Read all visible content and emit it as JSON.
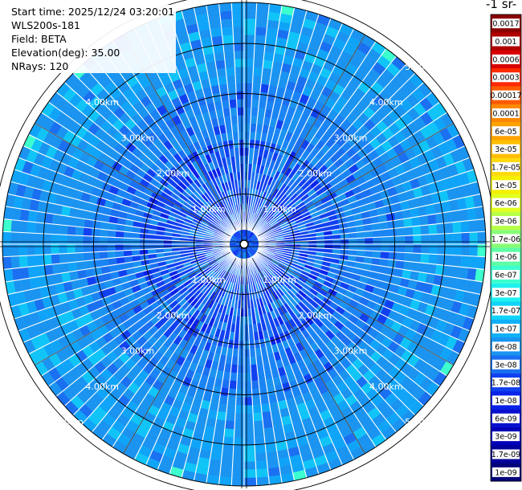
{
  "info": {
    "start_time": "Start time: 2025/12/24 03:20:01",
    "instrument": "WLS200s-181",
    "field": "Field: BETA",
    "elevation": "Elevation(deg): 35.00",
    "nrays": "NRays: 120"
  },
  "unit_label": "-1 sr-",
  "chart_data": {
    "type": "heatmap",
    "subtype": "ppi-polar-scan",
    "field": "BETA",
    "elevation_deg": 35.0,
    "n_rays": 120,
    "max_range_km": 5.8,
    "range_rings_km": [
      1,
      2,
      3,
      4,
      5
    ],
    "range_ring_labels": [
      "1.00km",
      "2.00km",
      "3.00km",
      "4.00km",
      "5.00km"
    ],
    "colorbar": {
      "labels": [
        "0.0017",
        "0.001",
        "0.0006",
        "0.0003",
        "0.00017",
        "0.0001",
        "6e-05",
        "3e-05",
        "1.7e-05",
        "1e-05",
        "6e-06",
        "3e-06",
        "1.7e-06",
        "1e-06",
        "6e-07",
        "3e-07",
        "1.7e-07",
        "1e-07",
        "6e-08",
        "3e-08",
        "1.7e-08",
        "1e-08",
        "6e-09",
        "3e-09",
        "1.7e-09",
        "1e-09"
      ],
      "colors": [
        "#8b0000",
        "#b00000",
        "#d80000",
        "#ff2a00",
        "#ff5a00",
        "#ff8800",
        "#ffa200",
        "#ffbe00",
        "#ffda10",
        "#f4f000",
        "#e0ff20",
        "#b8ff48",
        "#88ff78",
        "#5cffa4",
        "#3cffd0",
        "#1ef0f0",
        "#10d4f8",
        "#10b0f8",
        "#1a94f0",
        "#1a70f0",
        "#1040f0",
        "#0822e8",
        "#0810d0",
        "#0000b8",
        "#00009a",
        "#000078"
      ]
    },
    "dominant_value_range": [
      "3e-08",
      "1e-07"
    ],
    "enhanced_band": {
      "azimuth_deg": [
        322,
        358
      ],
      "range_km": [
        5.3,
        5.7
      ],
      "value": "1.7e-06"
    }
  }
}
